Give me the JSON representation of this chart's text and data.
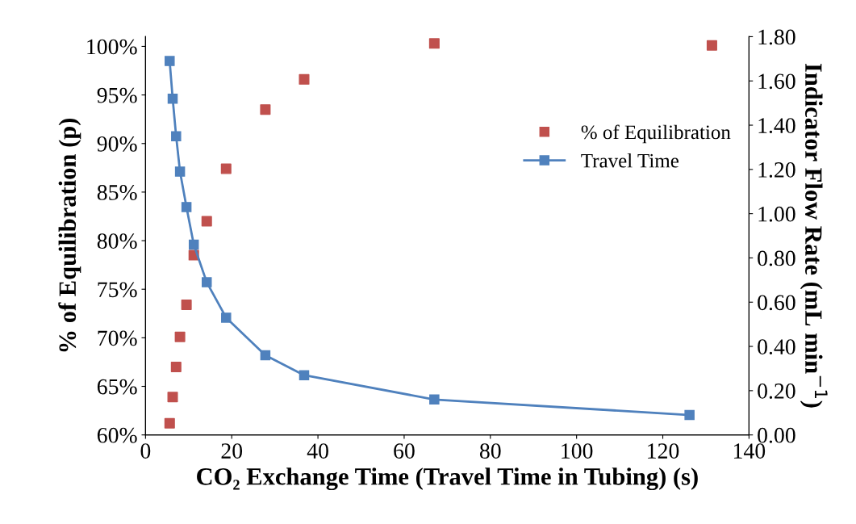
{
  "chart_data": {
    "type": "scatter",
    "xlabel": "CO₂ Exchange Time (Travel Time in Tubing) (s)",
    "ylabel": "% of Equilibration (p)",
    "y2label": "Indicator Flow Rate (mL min$^{−1}$)",
    "xlim": [
      0,
      140
    ],
    "xticks": [
      0,
      20,
      40,
      60,
      80,
      100,
      120,
      140
    ],
    "ylim": [
      60,
      101
    ],
    "yticks": [
      {
        "value": 60,
        "label": "60%"
      },
      {
        "value": 65,
        "label": "65%"
      },
      {
        "value": 70,
        "label": "70%"
      },
      {
        "value": 75,
        "label": "75%"
      },
      {
        "value": 80,
        "label": "80%"
      },
      {
        "value": 85,
        "label": "85%"
      },
      {
        "value": 90,
        "label": "90%"
      },
      {
        "value": 95,
        "label": "95%"
      },
      {
        "value": 100,
        "label": "100%"
      }
    ],
    "y2lim": [
      0,
      1.8
    ],
    "y2ticks": [
      {
        "value": 0,
        "label": "0.00"
      },
      {
        "value": 0.2,
        "label": "0.20"
      },
      {
        "value": 0.4,
        "label": "0.40"
      },
      {
        "value": 0.6,
        "label": "0.60"
      },
      {
        "value": 0.8,
        "label": "0.80"
      },
      {
        "value": 1.0,
        "label": "1.00"
      },
      {
        "value": 1.2,
        "label": "1.20"
      },
      {
        "value": 1.4,
        "label": "1.40"
      },
      {
        "value": 1.6,
        "label": "1.60"
      },
      {
        "value": 1.8,
        "label": "1.80"
      }
    ],
    "marker": "square",
    "grid": false,
    "legend": "right",
    "series": [
      {
        "name": "% of Equilibration",
        "color": "#c0504d",
        "x": [
          5.6,
          6.3,
          7.1,
          8.0,
          9.5,
          11.2,
          14.2,
          18.7,
          27.8,
          36.8,
          67.0,
          131.4
        ],
        "values": [
          61.2,
          63.9,
          67.0,
          70.1,
          73.4,
          78.5,
          82.0,
          87.4,
          93.5,
          96.6,
          100.3,
          100.1
        ]
      },
      {
        "name": "Travel Time",
        "type": "line",
        "axis": "y2",
        "line_style": "solid",
        "color": "#4f81bd",
        "x": [
          5.6,
          6.3,
          7.1,
          8.0,
          9.5,
          11.2,
          14.2,
          18.7,
          27.8,
          36.8,
          67.0,
          126.2
        ],
        "values": [
          1.69,
          1.52,
          1.35,
          1.19,
          1.03,
          0.86,
          0.69,
          0.53,
          0.36,
          0.27,
          0.16,
          0.09
        ]
      }
    ]
  }
}
